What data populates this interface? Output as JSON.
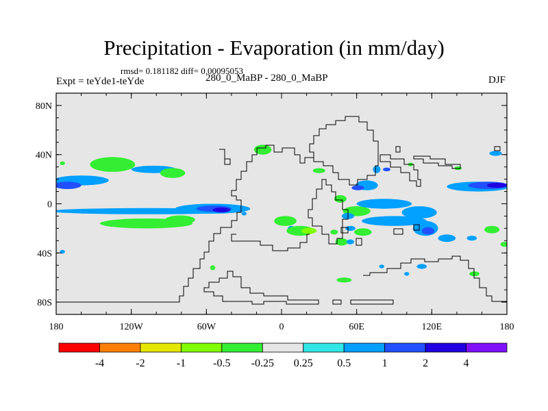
{
  "chart_data": {
    "type": "heatmap",
    "title": "Precipitation - Evaporation (in mm/day)",
    "stats": "rmsd= 0.181182 diff= 0.00095053",
    "left_label": "Expt = teYde1-teYde",
    "center_label": "280_0_MaBP - 280_0_MaBP",
    "right_label": "DJF",
    "x_range": [
      -180,
      180
    ],
    "y_range": [
      -90,
      90
    ],
    "x_ticks": [
      {
        "value": -180,
        "label": "180"
      },
      {
        "value": -120,
        "label": "120W"
      },
      {
        "value": -60,
        "label": "60W"
      },
      {
        "value": 0,
        "label": "0"
      },
      {
        "value": 60,
        "label": "60E"
      },
      {
        "value": 120,
        "label": "120E"
      },
      {
        "value": 180,
        "label": "180"
      }
    ],
    "y_ticks": [
      {
        "value": 80,
        "label": "80N"
      },
      {
        "value": 40,
        "label": "40N"
      },
      {
        "value": 0,
        "label": "0"
      },
      {
        "value": -40,
        "label": "40S"
      },
      {
        "value": -80,
        "label": "80S"
      }
    ],
    "colorbar": {
      "colors": [
        "#ff0000",
        "#ff8000",
        "#e6e600",
        "#80ff00",
        "#33ee33",
        "#e6e6e6",
        "#33e6e6",
        "#00a0ff",
        "#2050ff",
        "#2000e0",
        "#8010ff"
      ],
      "labels": [
        "-4",
        "-2",
        "-1",
        "-0.5",
        "-0.25",
        "0.25",
        "0.5",
        "1",
        "2",
        "4"
      ]
    },
    "contour_patches": [
      {
        "lon": -160,
        "lat": 19,
        "rx": 22,
        "ry": 4,
        "level": "0.5"
      },
      {
        "lon": -171,
        "lat": 15,
        "rx": 11,
        "ry": 3,
        "level": "1"
      },
      {
        "lon": -135,
        "lat": 32,
        "rx": 18,
        "ry": 6,
        "level": "-0.25"
      },
      {
        "lon": -102,
        "lat": 28,
        "rx": 18,
        "ry": 3,
        "level": "0.5"
      },
      {
        "lon": -87,
        "lat": 25,
        "rx": 10,
        "ry": 4,
        "level": "-0.25"
      },
      {
        "lon": -175,
        "lat": 33,
        "rx": 2,
        "ry": 1.5,
        "level": "-0.25"
      },
      {
        "lon": -107,
        "lat": -6,
        "rx": 78,
        "ry": 2.5,
        "level": "0.5"
      },
      {
        "lon": -55,
        "lat": -4,
        "rx": 30,
        "ry": 4,
        "level": "0.5"
      },
      {
        "lon": -54,
        "lat": -4,
        "rx": 14,
        "ry": 2.5,
        "level": "1"
      },
      {
        "lon": -48,
        "lat": -5,
        "rx": 7,
        "ry": 2,
        "level": "2"
      },
      {
        "lon": -108,
        "lat": -16,
        "rx": 37,
        "ry": 4,
        "level": "-0.25"
      },
      {
        "lon": -81,
        "lat": -13,
        "rx": 12,
        "ry": 3.5,
        "level": "-0.25"
      },
      {
        "lon": -15,
        "lat": 44,
        "rx": 7,
        "ry": 4,
        "level": "-0.25"
      },
      {
        "lon": 30,
        "lat": 27,
        "rx": 5,
        "ry": 2,
        "level": "-0.25"
      },
      {
        "lon": 68,
        "lat": 15,
        "rx": 9,
        "ry": 4,
        "level": "0.5"
      },
      {
        "lon": 61,
        "lat": 13,
        "rx": 5,
        "ry": 2,
        "level": "1"
      },
      {
        "lon": 76,
        "lat": 28,
        "rx": 3,
        "ry": 3,
        "level": "0.5"
      },
      {
        "lon": 47,
        "lat": 4,
        "rx": 5,
        "ry": 3,
        "level": "-0.25"
      },
      {
        "lon": 60,
        "lat": -6,
        "rx": 11,
        "ry": 4,
        "level": "-0.25"
      },
      {
        "lon": 53,
        "lat": -10,
        "rx": 5,
        "ry": 2.5,
        "level": "0.5"
      },
      {
        "lon": 82,
        "lat": 0,
        "rx": 22,
        "ry": 4,
        "level": "0.5"
      },
      {
        "lon": 110,
        "lat": -7,
        "rx": 14,
        "ry": 5,
        "level": "0.5"
      },
      {
        "lon": 90,
        "lat": -14,
        "rx": 26,
        "ry": 4,
        "level": "0.5"
      },
      {
        "lon": 115,
        "lat": -20,
        "rx": 10,
        "ry": 6,
        "level": "0.5"
      },
      {
        "lon": 117,
        "lat": -22,
        "rx": 5,
        "ry": 3,
        "level": "1"
      },
      {
        "lon": 132,
        "lat": -28,
        "rx": 7,
        "ry": 3,
        "level": "0.5"
      },
      {
        "lon": 65,
        "lat": -23,
        "rx": 7,
        "ry": 3,
        "level": "-0.25"
      },
      {
        "lon": 48,
        "lat": -31,
        "rx": 5,
        "ry": 3,
        "level": "-0.25"
      },
      {
        "lon": 55,
        "lat": -31,
        "rx": 3,
        "ry": 2,
        "level": "0.5"
      },
      {
        "lon": 55,
        "lat": -20,
        "rx": 4,
        "ry": 2,
        "level": "0.5"
      },
      {
        "lon": 42,
        "lat": -23,
        "rx": 3,
        "ry": 2,
        "level": "-0.25"
      },
      {
        "lon": 3,
        "lat": -14,
        "rx": 9,
        "ry": 4,
        "level": "-0.25"
      },
      {
        "lon": 8,
        "lat": -20,
        "rx": 3,
        "ry": 2,
        "level": "0.5"
      },
      {
        "lon": 15,
        "lat": -22,
        "rx": 11,
        "ry": 4,
        "level": "-0.25"
      },
      {
        "lon": 22,
        "lat": -22,
        "rx": 6,
        "ry": 2.5,
        "level": "-0.5"
      },
      {
        "lon": 157,
        "lat": 14,
        "rx": 25,
        "ry": 4,
        "level": "0.5"
      },
      {
        "lon": 165,
        "lat": 15,
        "rx": 16,
        "ry": 3,
        "level": "1"
      },
      {
        "lon": 172,
        "lat": 15,
        "rx": 8,
        "ry": 2,
        "level": "2"
      },
      {
        "lon": 171,
        "lat": 41,
        "rx": 5,
        "ry": 2,
        "level": "0.5"
      },
      {
        "lon": 141,
        "lat": 29,
        "rx": 3,
        "ry": 1.5,
        "level": "-0.25"
      },
      {
        "lon": 103,
        "lat": 32,
        "rx": 2,
        "ry": 1.5,
        "level": "-0.25"
      },
      {
        "lon": 84,
        "lat": 28,
        "rx": 3,
        "ry": 1.5,
        "level": "1"
      },
      {
        "lon": 168,
        "lat": -21,
        "rx": 6,
        "ry": 3,
        "level": "-0.25"
      },
      {
        "lon": 178,
        "lat": -33,
        "rx": 3,
        "ry": 2,
        "level": "-0.25"
      },
      {
        "lon": 152,
        "lat": -28,
        "rx": 4,
        "ry": 2,
        "level": "0.5"
      },
      {
        "lon": 154,
        "lat": -57,
        "rx": 4,
        "ry": 2,
        "level": "-0.25"
      },
      {
        "lon": 112,
        "lat": -51,
        "rx": 4,
        "ry": 2,
        "level": "0.5"
      },
      {
        "lon": 100,
        "lat": -57,
        "rx": 2,
        "ry": 1.5,
        "level": "0.5"
      },
      {
        "lon": 50,
        "lat": -62,
        "rx": 6,
        "ry": 2,
        "level": "-0.25"
      },
      {
        "lon": 80,
        "lat": -51,
        "rx": 2,
        "ry": 1.5,
        "level": "0.5"
      },
      {
        "lon": -55,
        "lat": -52,
        "rx": 2,
        "ry": 2,
        "level": "-0.25"
      },
      {
        "lon": -175,
        "lat": -39,
        "rx": 2,
        "ry": 1.5,
        "level": "0.5"
      },
      {
        "lon": -30,
        "lat": -8,
        "rx": 2,
        "ry": 1.5,
        "level": "0.5"
      }
    ]
  }
}
